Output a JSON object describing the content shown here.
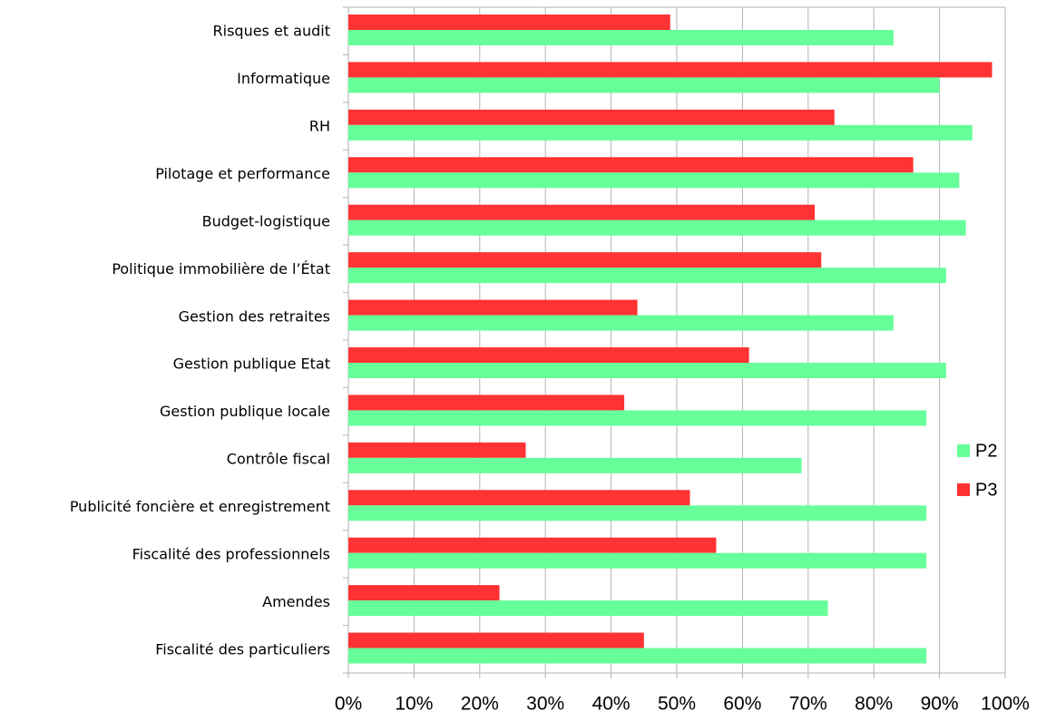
{
  "chart_data": {
    "type": "bar",
    "orientation": "horizontal",
    "categories": [
      "Risques et audit",
      "Informatique",
      "RH",
      "Pilotage et performance",
      "Budget-logistique",
      "Politique immobilière de l’État",
      "Gestion des retraites",
      "Gestion publique Etat",
      "Gestion publique locale",
      "Contrôle fiscal",
      "Publicité foncière et enregistrement",
      "Fiscalité des professionnels",
      "Amendes",
      "Fiscalité des particuliers"
    ],
    "series": [
      {
        "name": "P2",
        "color": "#66ff99",
        "values": [
          83,
          90,
          95,
          93,
          94,
          91,
          83,
          91,
          88,
          69,
          88,
          88,
          73,
          88
        ]
      },
      {
        "name": "P3",
        "color": "#ff3333",
        "values": [
          49,
          98,
          74,
          86,
          71,
          72,
          44,
          61,
          42,
          27,
          52,
          56,
          23,
          45
        ]
      }
    ],
    "xlim": [
      0,
      100
    ],
    "xticks": [
      {
        "value": 0,
        "label": "0%"
      },
      {
        "value": 10,
        "label": "10%"
      },
      {
        "value": 20,
        "label": "20%"
      },
      {
        "value": 30,
        "label": "30%"
      },
      {
        "value": 40,
        "label": "40%"
      },
      {
        "value": 50,
        "label": "50%"
      },
      {
        "value": 60,
        "label": "60%"
      },
      {
        "value": 70,
        "label": "70%"
      },
      {
        "value": 80,
        "label": "80%"
      },
      {
        "value": 90,
        "label": "90%"
      },
      {
        "value": 100,
        "label": "100%"
      }
    ],
    "grid": true,
    "legend": "right"
  }
}
